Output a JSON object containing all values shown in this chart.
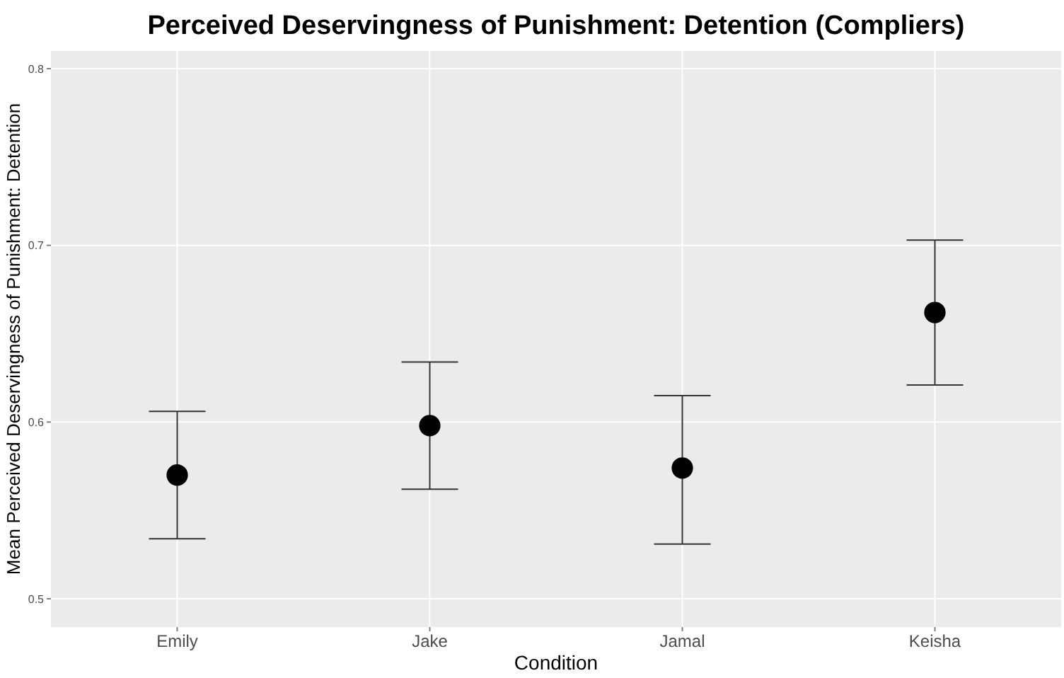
{
  "chart_data": {
    "type": "scatter",
    "title": "Perceived Deservingness of Punishment: Detention (Compliers)",
    "xlabel": "Condition",
    "ylabel": "Mean Perceived Deservingness of Punishment: Detention",
    "categories": [
      "Emily",
      "Jake",
      "Jamal",
      "Keisha"
    ],
    "series": [
      {
        "color": "#000000",
        "values": [
          0.57,
          0.598,
          0.574,
          0.662
        ],
        "errors": [
          [
            0.534,
            0.606
          ],
          [
            0.562,
            0.634
          ],
          [
            0.531,
            0.615
          ],
          [
            0.621,
            0.703
          ]
        ]
      }
    ],
    "ylim": [
      0.484,
      0.81
    ],
    "yticks": [
      0.5,
      0.6,
      0.7,
      0.8
    ],
    "grid": true,
    "marker": "circle"
  }
}
